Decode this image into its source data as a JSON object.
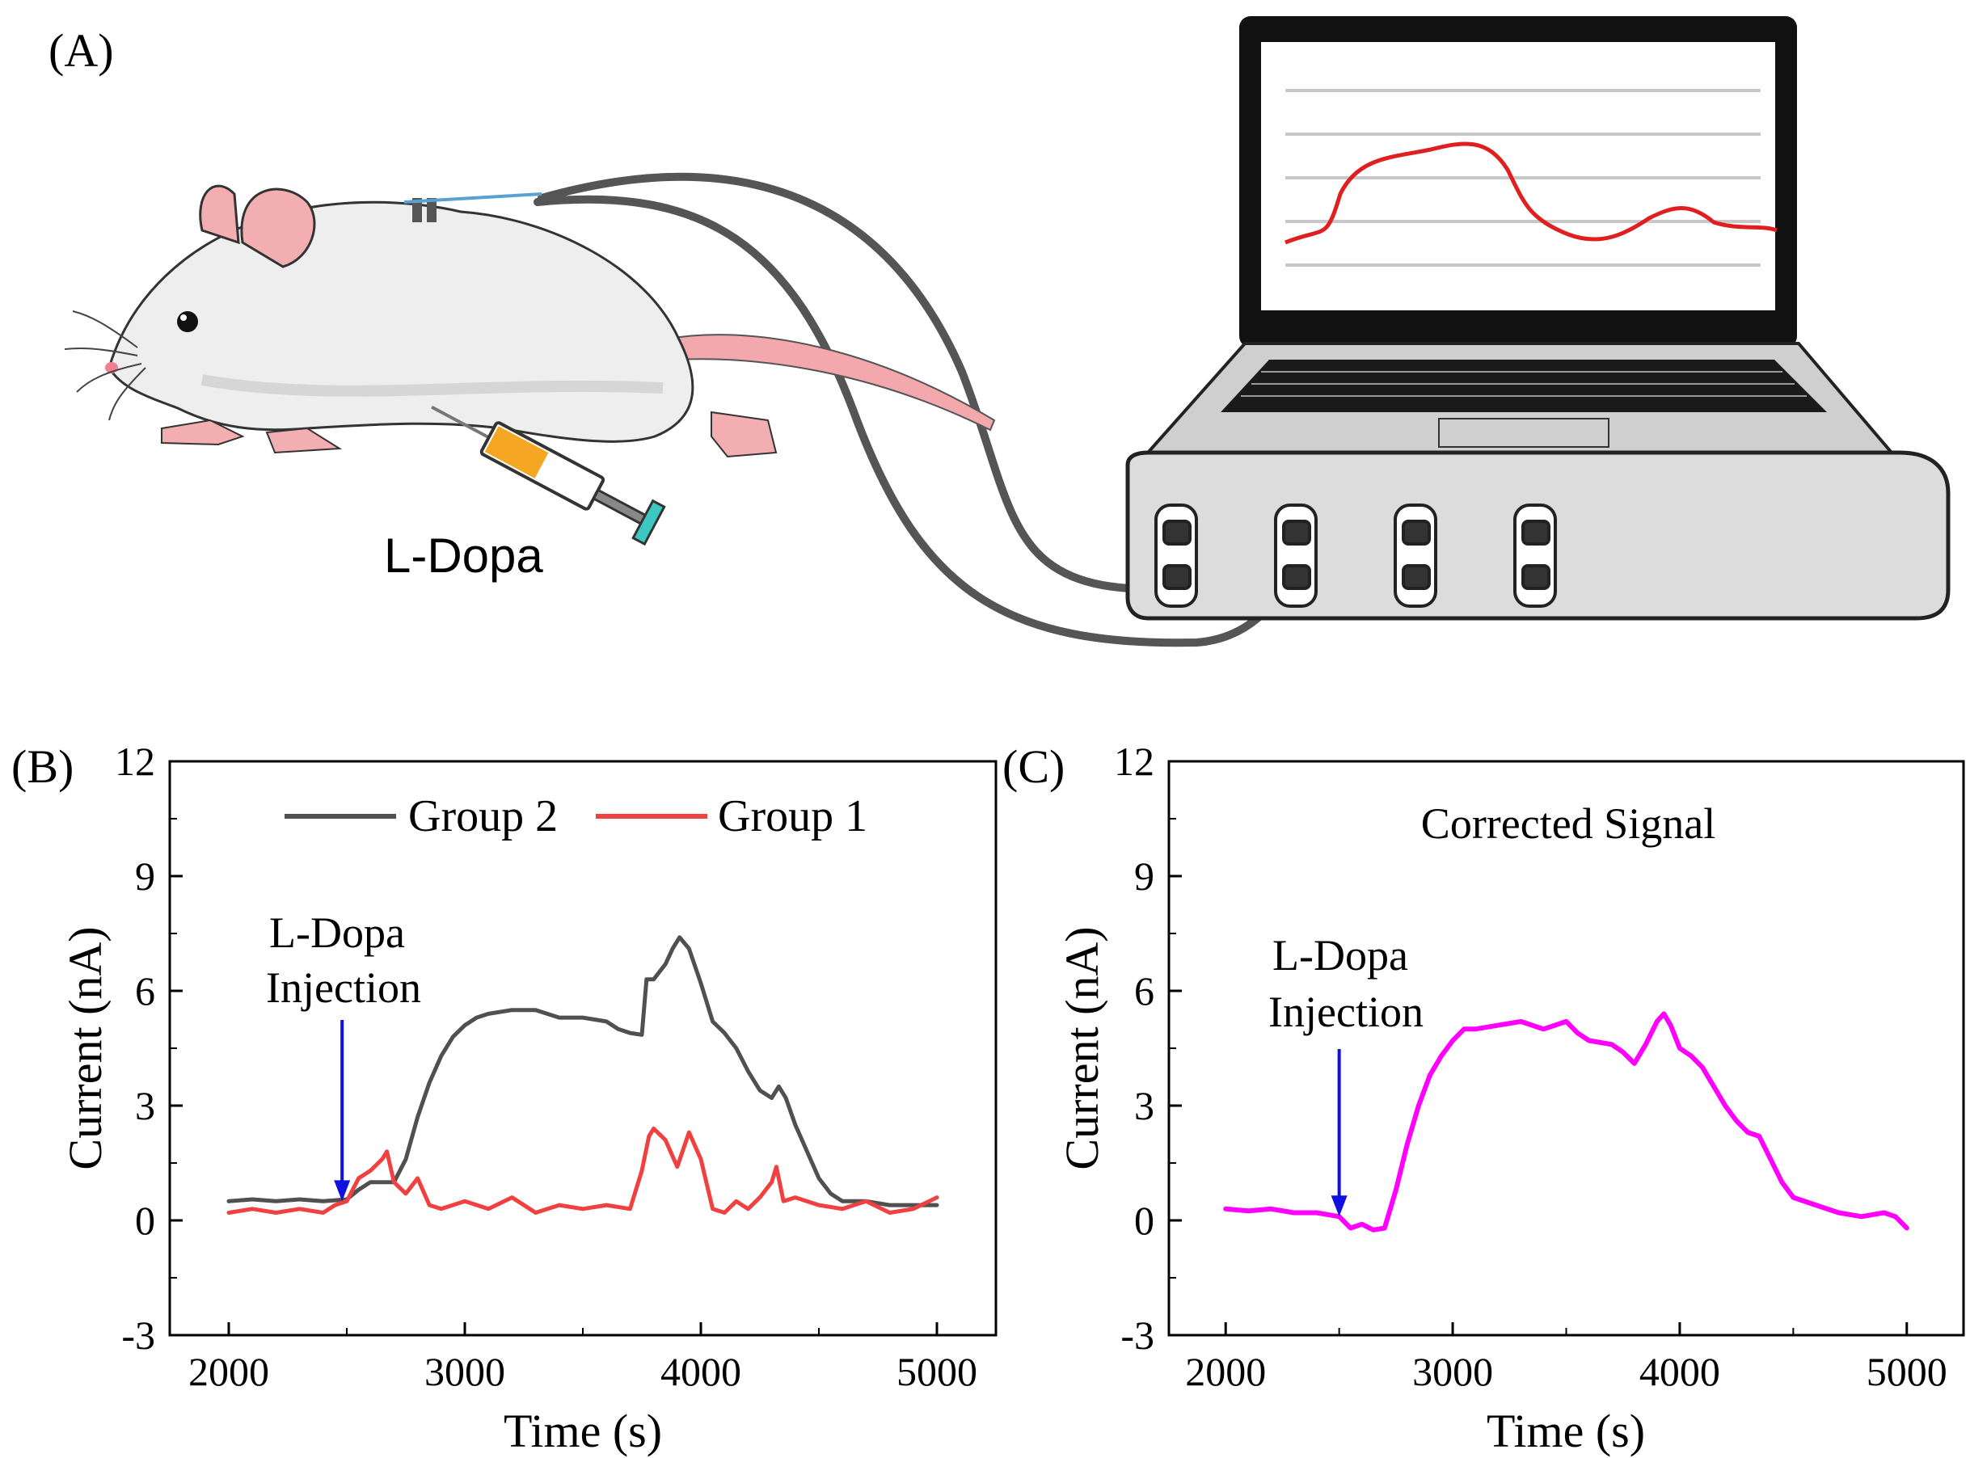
{
  "figure": {
    "panel_a_label": "(A)",
    "panel_b_label": "(B)",
    "panel_c_label": "(C)",
    "syringe_label": "L-Dopa"
  },
  "colors": {
    "group2": "#505050",
    "group1": "#f04040",
    "corrected": "#ff00ff",
    "arrow": "#1010e0",
    "screen_trace": "#e02020"
  },
  "chart_data": [
    {
      "id": "B",
      "type": "line",
      "xlabel": "Time (s)",
      "ylabel": "Current (nA)",
      "xlim": [
        1750,
        5250
      ],
      "ylim": [
        -3,
        12
      ],
      "xticks": [
        2000,
        3000,
        4000,
        5000
      ],
      "yticks": [
        -3,
        0,
        3,
        6,
        9,
        12
      ],
      "xticks_labels": [
        "2000",
        "3000",
        "4000",
        "5000"
      ],
      "yticks_labels": [
        "-3",
        "0",
        "3",
        "6",
        "9",
        "12"
      ],
      "legend": [
        "Group 2",
        "Group 1"
      ],
      "legend_position": "top",
      "annotation": {
        "line1": "L-Dopa",
        "line2": "Injection",
        "x": 2480
      },
      "series": [
        {
          "name": "Group 2",
          "color": "#505050",
          "x": [
            2000,
            2100,
            2200,
            2300,
            2400,
            2500,
            2550,
            2600,
            2650,
            2700,
            2750,
            2800,
            2850,
            2900,
            2950,
            3000,
            3050,
            3100,
            3200,
            3300,
            3400,
            3500,
            3600,
            3650,
            3700,
            3750,
            3770,
            3800,
            3850,
            3880,
            3910,
            3950,
            4000,
            4050,
            4100,
            4150,
            4200,
            4250,
            4300,
            4330,
            4360,
            4400,
            4450,
            4500,
            4550,
            4600,
            4700,
            4800,
            4900,
            5000
          ],
          "values": [
            0.5,
            0.55,
            0.5,
            0.55,
            0.5,
            0.55,
            0.8,
            1.0,
            1.0,
            1.0,
            1.6,
            2.7,
            3.6,
            4.3,
            4.8,
            5.1,
            5.3,
            5.4,
            5.5,
            5.5,
            5.3,
            5.3,
            5.2,
            5.0,
            4.9,
            4.85,
            6.3,
            6.3,
            6.7,
            7.1,
            7.4,
            7.1,
            6.2,
            5.2,
            4.9,
            4.5,
            3.9,
            3.4,
            3.2,
            3.5,
            3.2,
            2.5,
            1.8,
            1.1,
            0.7,
            0.5,
            0.5,
            0.4,
            0.4,
            0.4
          ]
        },
        {
          "name": "Group 1",
          "color": "#f04040",
          "x": [
            2000,
            2100,
            2200,
            2300,
            2400,
            2450,
            2500,
            2550,
            2600,
            2650,
            2670,
            2700,
            2750,
            2800,
            2850,
            2900,
            3000,
            3100,
            3200,
            3300,
            3400,
            3500,
            3600,
            3700,
            3750,
            3780,
            3800,
            3850,
            3900,
            3950,
            4000,
            4050,
            4100,
            4150,
            4200,
            4250,
            4300,
            4320,
            4350,
            4400,
            4500,
            4600,
            4700,
            4800,
            4900,
            5000
          ],
          "values": [
            0.2,
            0.3,
            0.2,
            0.3,
            0.2,
            0.4,
            0.5,
            1.1,
            1.3,
            1.6,
            1.8,
            1.0,
            0.7,
            1.1,
            0.4,
            0.3,
            0.5,
            0.3,
            0.6,
            0.2,
            0.4,
            0.3,
            0.4,
            0.3,
            1.3,
            2.2,
            2.4,
            2.1,
            1.4,
            2.3,
            1.6,
            0.3,
            0.2,
            0.5,
            0.3,
            0.6,
            1.0,
            1.4,
            0.5,
            0.6,
            0.4,
            0.3,
            0.5,
            0.2,
            0.3,
            0.6
          ]
        }
      ]
    },
    {
      "id": "C",
      "type": "line",
      "xlabel": "Time (s)",
      "ylabel": "Current (nA)",
      "xlim": [
        1750,
        5250
      ],
      "ylim": [
        -3,
        12
      ],
      "xticks": [
        2000,
        3000,
        4000,
        5000
      ],
      "yticks": [
        -3,
        0,
        3,
        6,
        9,
        12
      ],
      "xticks_labels": [
        "2000",
        "3000",
        "4000",
        "5000"
      ],
      "yticks_labels": [
        "-3",
        "0",
        "3",
        "6",
        "9",
        "12"
      ],
      "title": "Corrected Signal",
      "annotation": {
        "line1": "L-Dopa",
        "line2": "Injection",
        "x": 2500
      },
      "series": [
        {
          "name": "Corrected Signal",
          "color": "#ff00ff",
          "x": [
            2000,
            2100,
            2200,
            2300,
            2400,
            2500,
            2550,
            2600,
            2650,
            2700,
            2750,
            2800,
            2850,
            2900,
            2950,
            3000,
            3050,
            3100,
            3200,
            3300,
            3400,
            3500,
            3550,
            3600,
            3700,
            3750,
            3800,
            3850,
            3900,
            3930,
            3960,
            4000,
            4050,
            4100,
            4150,
            4200,
            4250,
            4300,
            4350,
            4400,
            4450,
            4500,
            4600,
            4700,
            4800,
            4900,
            4950,
            5000
          ],
          "values": [
            0.3,
            0.25,
            0.3,
            0.2,
            0.2,
            0.1,
            -0.2,
            -0.1,
            -0.25,
            -0.2,
            0.8,
            2.0,
            3.0,
            3.8,
            4.3,
            4.7,
            5.0,
            5.0,
            5.1,
            5.2,
            5.0,
            5.2,
            4.9,
            4.7,
            4.6,
            4.4,
            4.1,
            4.6,
            5.2,
            5.4,
            5.1,
            4.5,
            4.3,
            4.0,
            3.5,
            3.0,
            2.6,
            2.3,
            2.2,
            1.6,
            1.0,
            0.6,
            0.4,
            0.2,
            0.1,
            0.2,
            0.1,
            -0.2
          ]
        }
      ]
    }
  ]
}
